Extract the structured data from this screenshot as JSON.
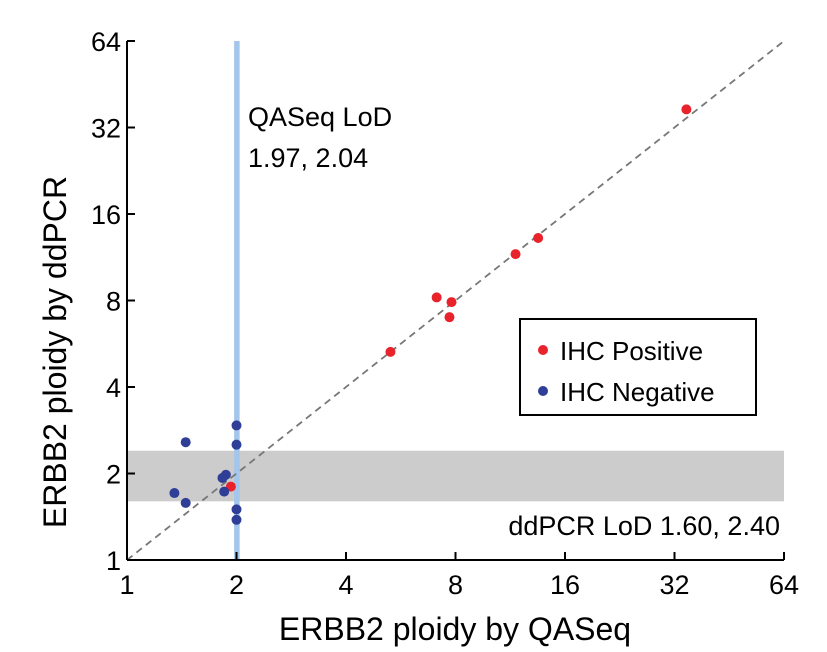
{
  "chart_data": {
    "type": "scatter",
    "xlabel": "ERBB2 ploidy by QASeq",
    "ylabel": "ERBB2 ploidy by ddPCR",
    "scale": "log2",
    "xlim": [
      1,
      64
    ],
    "ylim": [
      1,
      64
    ],
    "xticks": [
      1,
      2,
      4,
      8,
      16,
      32,
      64
    ],
    "yticks": [
      1,
      2,
      4,
      8,
      16,
      32,
      64
    ],
    "xtick_labels": [
      "1",
      "2",
      "4",
      "8",
      "16",
      "32",
      "64"
    ],
    "ytick_labels": [
      "1",
      "2",
      "4",
      "8",
      "16",
      "32",
      "64"
    ],
    "identity_line": true,
    "qaseq_lod": {
      "label_line1": "QASeq LoD",
      "label_line2": "1.97, 2.04",
      "range": [
        1.97,
        2.04
      ],
      "color": "#a4c6ea"
    },
    "ddpcr_lod": {
      "label": "ddPCR LoD 1.60, 2.40",
      "range": [
        1.6,
        2.4
      ],
      "color": "#cccccc"
    },
    "legend_position": "right",
    "series": [
      {
        "name": "IHC Positive",
        "color": "#e8232b",
        "points": [
          [
            34.5,
            37.0
          ],
          [
            13.5,
            13.2
          ],
          [
            11.7,
            11.6
          ],
          [
            7.8,
            7.9
          ],
          [
            7.1,
            8.2
          ],
          [
            7.7,
            7.0
          ],
          [
            5.3,
            5.3
          ],
          [
            1.93,
            1.8
          ]
        ]
      },
      {
        "name": "IHC Negative",
        "color": "#2f3f98",
        "points": [
          [
            2.0,
            2.94
          ],
          [
            2.0,
            2.52
          ],
          [
            1.45,
            2.57
          ],
          [
            1.87,
            1.98
          ],
          [
            1.83,
            1.93
          ],
          [
            1.85,
            1.73
          ],
          [
            1.35,
            1.71
          ],
          [
            1.45,
            1.58
          ],
          [
            2.0,
            1.5
          ],
          [
            2.0,
            1.38
          ]
        ]
      }
    ]
  }
}
